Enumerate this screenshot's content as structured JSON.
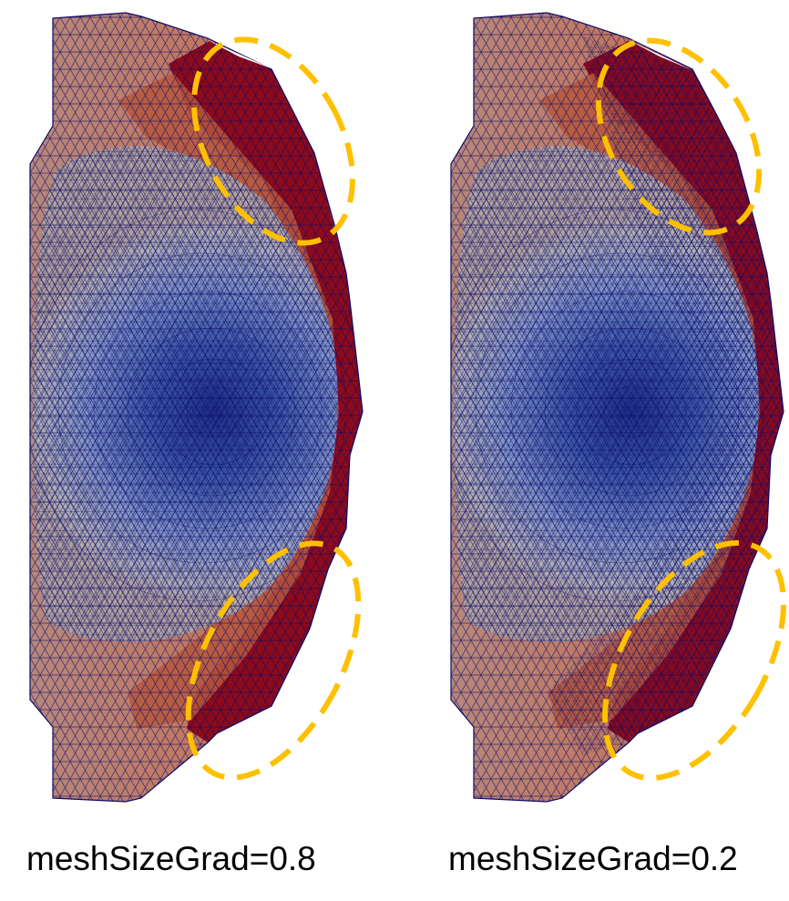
{
  "panels": [
    {
      "caption": "meshSizeGrad=0.8",
      "highlight_color": "#FFC000"
    },
    {
      "caption": "meshSizeGrad=0.2",
      "highlight_color": "#FFC000"
    }
  ],
  "colors": {
    "core_blue": "#1f2f86",
    "mid_blue": "#5a79bf",
    "neutral": "#b3a39d",
    "warm": "#c4745a",
    "edge_red": "#8c0a1a",
    "mesh_line": "#0a0a6a",
    "highlight": "#FFC000",
    "background": "#ffffff"
  }
}
